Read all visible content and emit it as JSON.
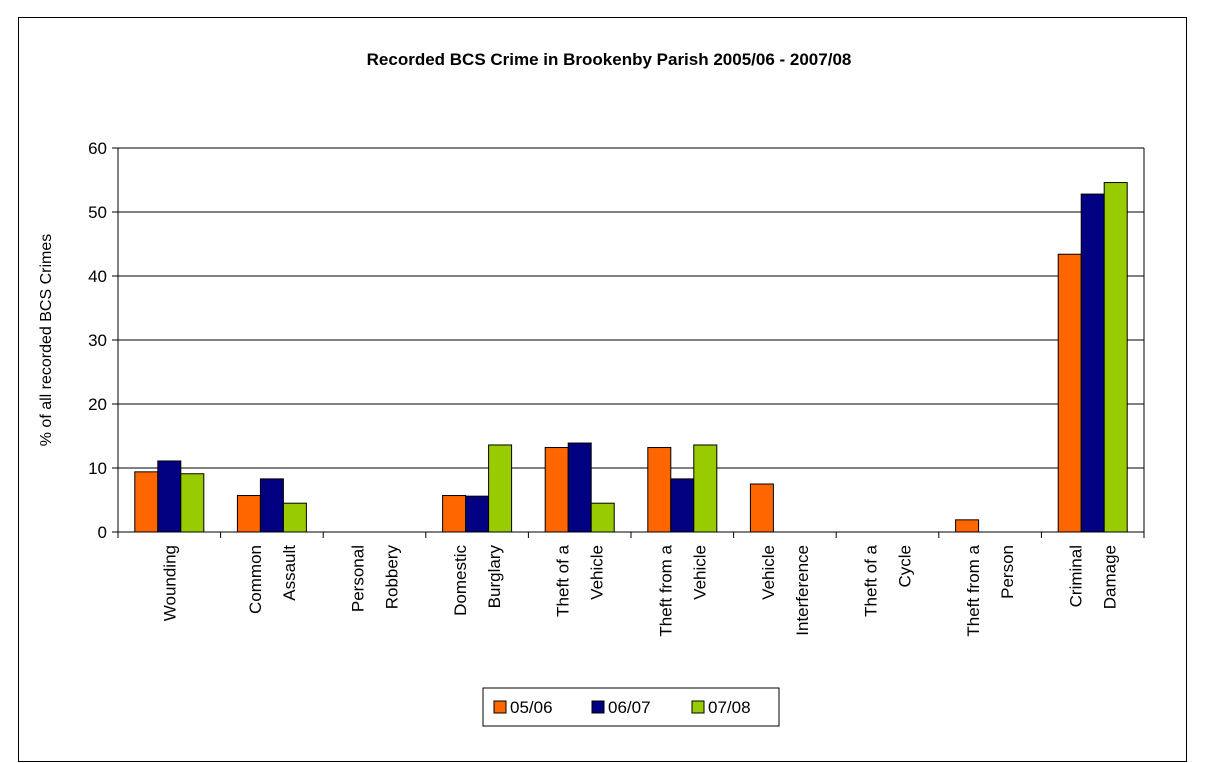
{
  "chart_data": {
    "type": "bar",
    "title": "Recorded BCS Crime in Brookenby Parish 2005/06 - 2007/08",
    "xlabel": "",
    "ylabel": "% of all recorded BCS Crimes",
    "ylim": [
      0,
      60
    ],
    "yticks": [
      0,
      10,
      20,
      30,
      40,
      50,
      60
    ],
    "grid": true,
    "legend_position": "bottom",
    "categories": [
      [
        "Wounding"
      ],
      [
        "Common",
        "Assault"
      ],
      [
        "Personal",
        "Robbery"
      ],
      [
        "Domestic",
        "Burglary"
      ],
      [
        "Theft of a",
        "Vehicle"
      ],
      [
        "Theft from a",
        "Vehicle"
      ],
      [
        "Vehicle",
        "Interference"
      ],
      [
        "Theft of a",
        "Cycle"
      ],
      [
        "Theft from a",
        "Person"
      ],
      [
        "Criminal",
        "Damage"
      ]
    ],
    "series": [
      {
        "name": "05/06",
        "color": "#FF6600",
        "values": [
          9.4,
          5.7,
          0,
          5.7,
          13.2,
          13.2,
          7.5,
          0,
          1.9,
          43.4
        ]
      },
      {
        "name": "06/07",
        "color": "#000080",
        "values": [
          11.1,
          8.3,
          0,
          5.6,
          13.9,
          8.3,
          0,
          0,
          0,
          52.8
        ]
      },
      {
        "name": "07/08",
        "color": "#99CC00",
        "values": [
          9.1,
          4.5,
          0,
          13.6,
          4.5,
          13.6,
          0,
          0,
          0,
          54.6
        ]
      }
    ]
  }
}
